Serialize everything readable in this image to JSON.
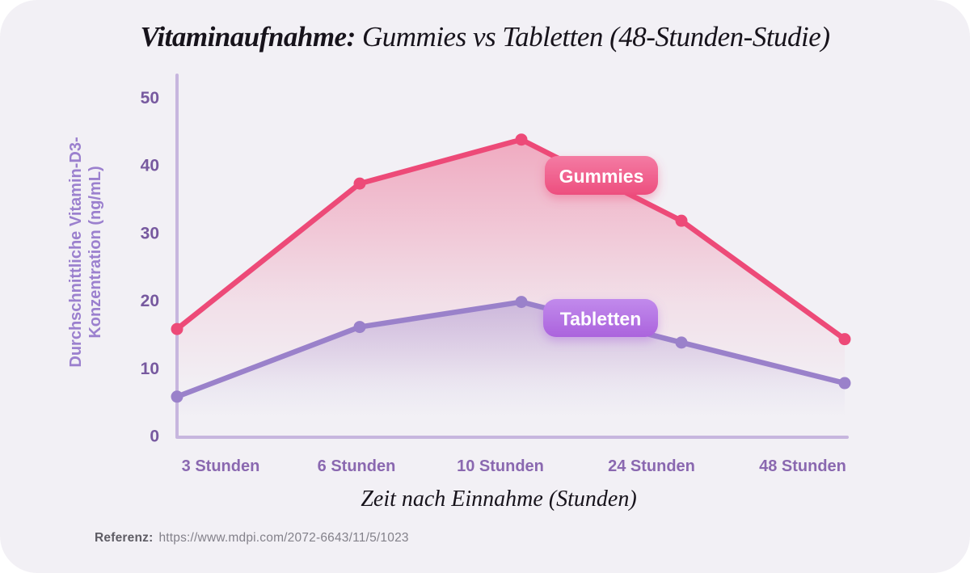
{
  "title": {
    "emphasis": "Vitaminaufnahme:",
    "rest": "Gummies vs Tabletten (48-Stunden-Studie)"
  },
  "chart_data": {
    "type": "line",
    "categories": [
      "3 Stunden",
      "6 Stunden",
      "10 Stunden",
      "24 Stunden",
      "48 Stunden"
    ],
    "series": [
      {
        "name": "Gummies",
        "values": [
          16,
          37.5,
          44,
          32,
          14.5
        ],
        "color": "#ed4a78",
        "badge_gradient": [
          "#f47ba3",
          "#ed4e7e"
        ]
      },
      {
        "name": "Tabletten",
        "values": [
          6,
          16.3,
          20,
          14,
          8
        ],
        "color": "#9a81ca",
        "badge_gradient": [
          "#c18aec",
          "#ab63dd"
        ]
      }
    ],
    "xlabel": "Zeit nach Einnahme (Stunden)",
    "ylabel_lines": [
      "Durchschnittliche Vitamin-D3-",
      "Konzentration (ng/mL)"
    ],
    "y_ticks": [
      0,
      10,
      20,
      30,
      40,
      50
    ],
    "ylim": [
      0,
      50
    ],
    "grid": false,
    "legend_position": "inline-badges-on-plot",
    "area_fill": "gradient-fade-to-transparent"
  },
  "reference": {
    "label": "Referenz:",
    "url": "https://www.mdpi.com/2072-6643/11/5/1023"
  },
  "colors": {
    "card_background": "#f2f0f5",
    "page_background": "#ffffff",
    "axis": "#c7b6de",
    "y_tick_text": "#77599f",
    "x_category_text": "#8a68b0",
    "y_axis_title_text": "#9b80ce",
    "title_text": "#17131b",
    "badge_text": "#ffffff",
    "reference_label_text": "#5e5c64",
    "reference_url_text": "#83818a"
  }
}
